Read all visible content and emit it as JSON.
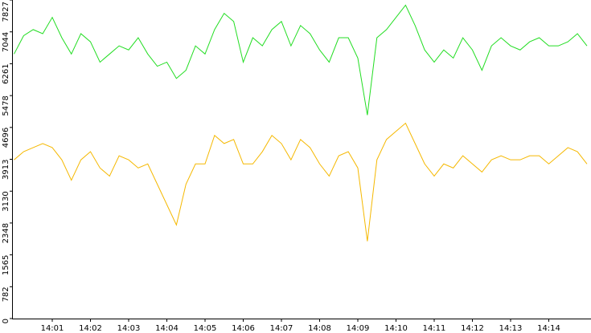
{
  "chart_data": {
    "type": "line",
    "categories": [
      null,
      null,
      null,
      null,
      "14:01",
      null,
      null,
      null,
      "14:02",
      null,
      null,
      null,
      "14:03",
      null,
      null,
      null,
      "14:04",
      null,
      null,
      null,
      "14:05",
      null,
      null,
      null,
      "14:06",
      null,
      null,
      null,
      "14:07",
      null,
      null,
      null,
      "14:08",
      null,
      null,
      null,
      "14:09",
      null,
      null,
      null,
      "14:10",
      null,
      null,
      null,
      "14:11",
      null,
      null,
      null,
      "14:12",
      null,
      null,
      null,
      "14:13",
      null,
      null,
      null,
      "14:14",
      null,
      null,
      null,
      null
    ],
    "series": [
      {
        "name": "green",
        "color": "#22dd22",
        "values": [
          6500,
          6950,
          7100,
          7000,
          7400,
          6900,
          6500,
          7000,
          6800,
          6300,
          6500,
          6700,
          6600,
          6900,
          6500,
          6200,
          6300,
          5900,
          6100,
          6700,
          6500,
          7100,
          7500,
          7300,
          6300,
          6900,
          6700,
          7100,
          7300,
          6700,
          7200,
          7000,
          6600,
          6300,
          6900,
          6900,
          6400,
          5000,
          6900,
          7100,
          7400,
          7700,
          7200,
          6600,
          6300,
          6600,
          6400,
          6900,
          6600,
          6100,
          6700,
          6900,
          6700,
          6600,
          6800,
          6900,
          6700,
          6700,
          6800,
          7000,
          6700
        ]
      },
      {
        "name": "orange",
        "color": "#f5b800",
        "values": [
          3900,
          4100,
          4200,
          4300,
          4200,
          3900,
          3400,
          3900,
          4100,
          3700,
          3500,
          4000,
          3900,
          3700,
          3800,
          3300,
          2800,
          2300,
          3300,
          3800,
          3800,
          4500,
          4300,
          4400,
          3800,
          3800,
          4100,
          4500,
          4300,
          3900,
          4400,
          4200,
          3800,
          3500,
          4000,
          4100,
          3700,
          1900,
          3900,
          4400,
          4600,
          4800,
          4300,
          3800,
          3500,
          3800,
          3700,
          4000,
          3800,
          3600,
          3900,
          4000,
          3900,
          3900,
          4000,
          4000,
          3800,
          4000,
          4200,
          4100,
          3800
        ]
      }
    ],
    "ylim": [
      0,
      7827
    ],
    "yticks": [
      0,
      782,
      1565,
      2348,
      3130,
      3913,
      4696,
      5478,
      6261,
      7044,
      7827
    ]
  }
}
